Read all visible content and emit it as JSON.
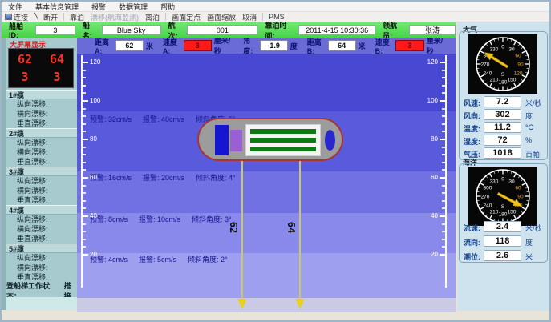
{
  "menu_bar": {
    "items": [
      "文件",
      "基本信息管理",
      "报警",
      "数据管理",
      "帮助"
    ]
  },
  "toolbar": {
    "items": [
      {
        "label": "连接"
      },
      {
        "label": "断开"
      },
      {
        "label": "靠泊"
      },
      {
        "label": "漂移(航海监测)"
      },
      {
        "label": "离泊"
      },
      {
        "label": "画面定点"
      },
      {
        "label": "画面缩放"
      },
      {
        "label": "取消"
      },
      {
        "label": "PMS"
      }
    ]
  },
  "info_bar": {
    "fields": [
      {
        "label": "船舶ID:",
        "value": "3"
      },
      {
        "label": "船名:",
        "value": "Blue Sky"
      },
      {
        "label": "航次:",
        "value": "001"
      },
      {
        "label": "靠泊时间:",
        "value": "2011-4-15 10:30:36"
      },
      {
        "label": "领航员:",
        "value": "张涛"
      }
    ]
  },
  "metrics_bar": {
    "items": [
      {
        "label": "距离A:",
        "value": "62",
        "unit": "米"
      },
      {
        "label": "速度A:",
        "value": "3",
        "unit": "厘米/秒"
      },
      {
        "label": "角度:",
        "value": "-1.9",
        "unit": "度"
      },
      {
        "label": "距离B:",
        "value": "64",
        "unit": "米"
      },
      {
        "label": "速度B:",
        "value": "3",
        "unit": "厘米/秒"
      }
    ]
  },
  "sidebar": {
    "display_title": "大屏幕显示",
    "display": {
      "row1": [
        "62",
        "64"
      ],
      "row2": [
        "3",
        "3"
      ]
    },
    "cable_groups": [
      {
        "title": "1#缆",
        "items": [
          "纵向漂移:",
          "横向漂移:",
          "垂直漂移:"
        ]
      },
      {
        "title": "2#缆",
        "items": [
          "纵向漂移:",
          "横向漂移:",
          "垂直漂移:"
        ]
      },
      {
        "title": "3#缆",
        "items": [
          "纵向漂移:",
          "横向漂移:",
          "垂直漂移:"
        ]
      },
      {
        "title": "4#缆",
        "items": [
          "纵向漂移:",
          "横向漂移:",
          "垂直漂移:"
        ]
      },
      {
        "title": "5#缆",
        "items": [
          "纵向漂移:",
          "横向漂移:",
          "垂直漂移:"
        ]
      }
    ],
    "ladder_status": {
      "label": "登船梯工作状态：",
      "value": "搭接"
    }
  },
  "chart": {
    "axis_ticks": [
      "120",
      "100",
      "80",
      "60",
      "40",
      "20"
    ],
    "alarm_rows": [
      {
        "warn": "预警: 32cm/s",
        "alarm": "报警: 40cm/s",
        "tilt": "倾斜角度: 5°"
      },
      {
        "warn": "预警: 16cm/s",
        "alarm": "报警: 20cm/s",
        "tilt": "倾斜角度: 4°"
      },
      {
        "warn": "预警: 8cm/s",
        "alarm": "报警: 10cm/s",
        "tilt": "倾斜角度: 3°"
      },
      {
        "warn": "预警: 4cm/s",
        "alarm": "报警: 5cm/s",
        "tilt": "倾斜角度: 2°"
      }
    ],
    "line_labels": [
      "62",
      "64"
    ]
  },
  "right_panel": {
    "compass_labels": [
      "0",
      "30",
      "60",
      "90",
      "120",
      "150",
      "180",
      "210",
      "240",
      "270",
      "300",
      "330"
    ],
    "south_label": "S",
    "groups": [
      {
        "title": "大气",
        "needle_deg": 302,
        "readings": [
          {
            "label": "风速:",
            "value": "7.2",
            "unit": "米/秒"
          },
          {
            "label": "风向:",
            "value": "302",
            "unit": "度"
          },
          {
            "label": "温度:",
            "value": "11.2",
            "unit": "°C"
          },
          {
            "label": "湿度:",
            "value": "72",
            "unit": "%"
          },
          {
            "label": "气压:",
            "value": "1018",
            "unit": "百帕"
          }
        ]
      },
      {
        "title": "海洋",
        "needle_deg": 118,
        "readings": [
          {
            "label": "流速:",
            "value": "2.4",
            "unit": "米/秒"
          },
          {
            "label": "流向:",
            "value": "118",
            "unit": "度"
          },
          {
            "label": "潮位:",
            "value": "2.6",
            "unit": "米"
          }
        ]
      }
    ]
  },
  "colors": {
    "alarm_red": "#ff1a1a",
    "info_green": "#57df57",
    "needle_yellow": "#f2c41a"
  }
}
